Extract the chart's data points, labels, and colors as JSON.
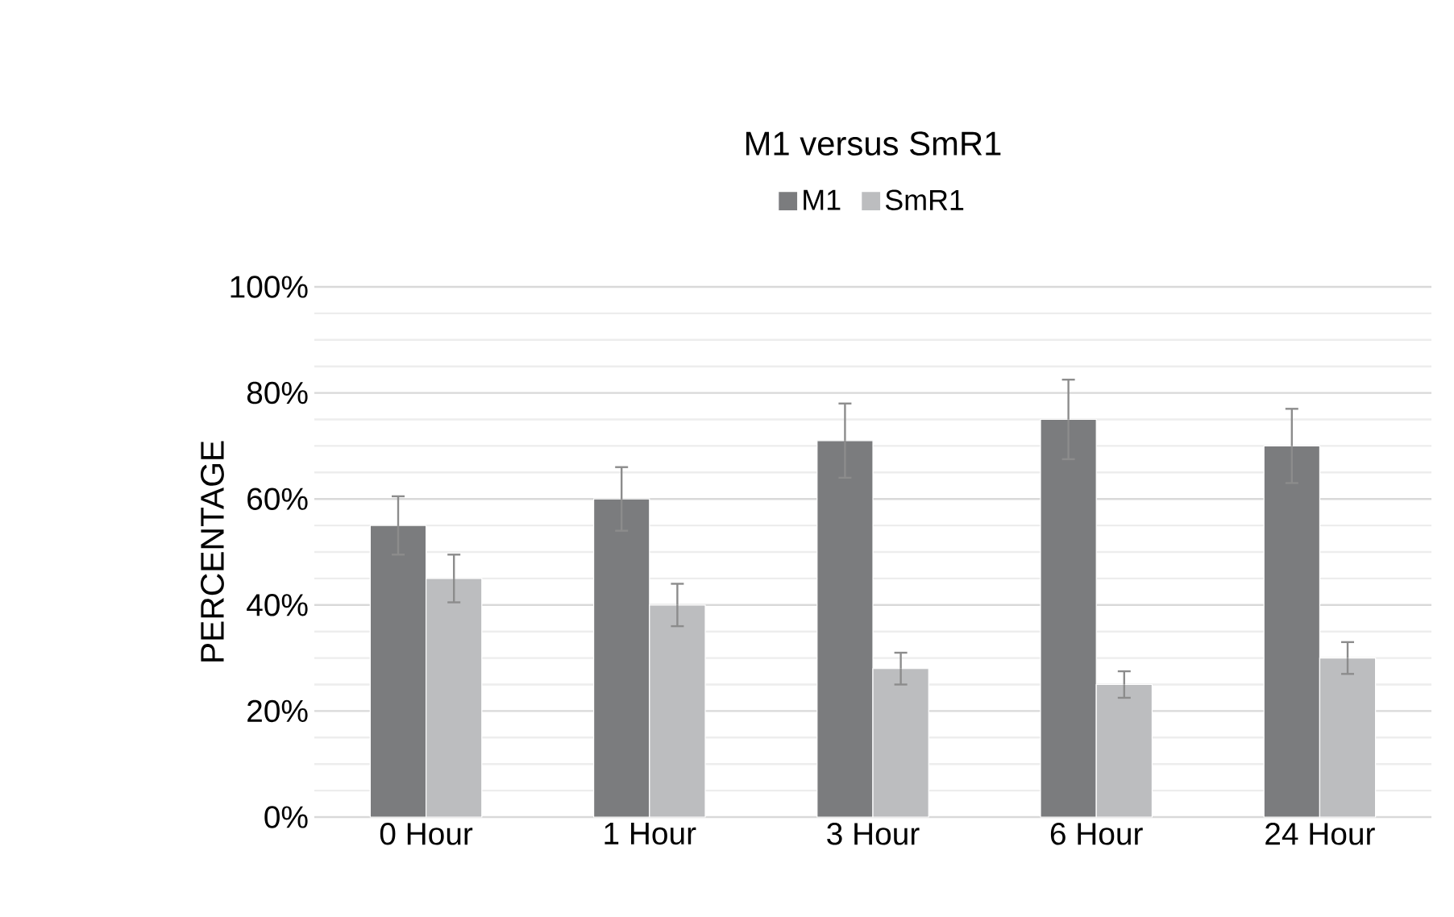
{
  "chart_data": {
    "type": "bar",
    "title": "M1 versus SmR1",
    "ylabel": "PERCENTAGE",
    "categories": [
      "0 Hour",
      "1 Hour",
      "3 Hour",
      "6 Hour",
      "24 Hour"
    ],
    "series": [
      {
        "name": "M1",
        "color": "#7b7c7e",
        "values": [
          55,
          60,
          71,
          75,
          70
        ],
        "errors": [
          5.5,
          6,
          7,
          7.5,
          7
        ]
      },
      {
        "name": "SmR1",
        "color": "#bcbdbf",
        "values": [
          45,
          40,
          28,
          25,
          30
        ],
        "errors": [
          4.5,
          4,
          3,
          2.5,
          3
        ]
      }
    ],
    "ylim": [
      0,
      100
    ],
    "yticks": [
      {
        "value": 0,
        "label": "0%"
      },
      {
        "value": 20,
        "label": "20%"
      },
      {
        "value": 40,
        "label": "40%"
      },
      {
        "value": 60,
        "label": "60%"
      },
      {
        "value": 80,
        "label": "80%"
      },
      {
        "value": 100,
        "label": "100%"
      }
    ],
    "grid": "y",
    "legend": "top"
  }
}
